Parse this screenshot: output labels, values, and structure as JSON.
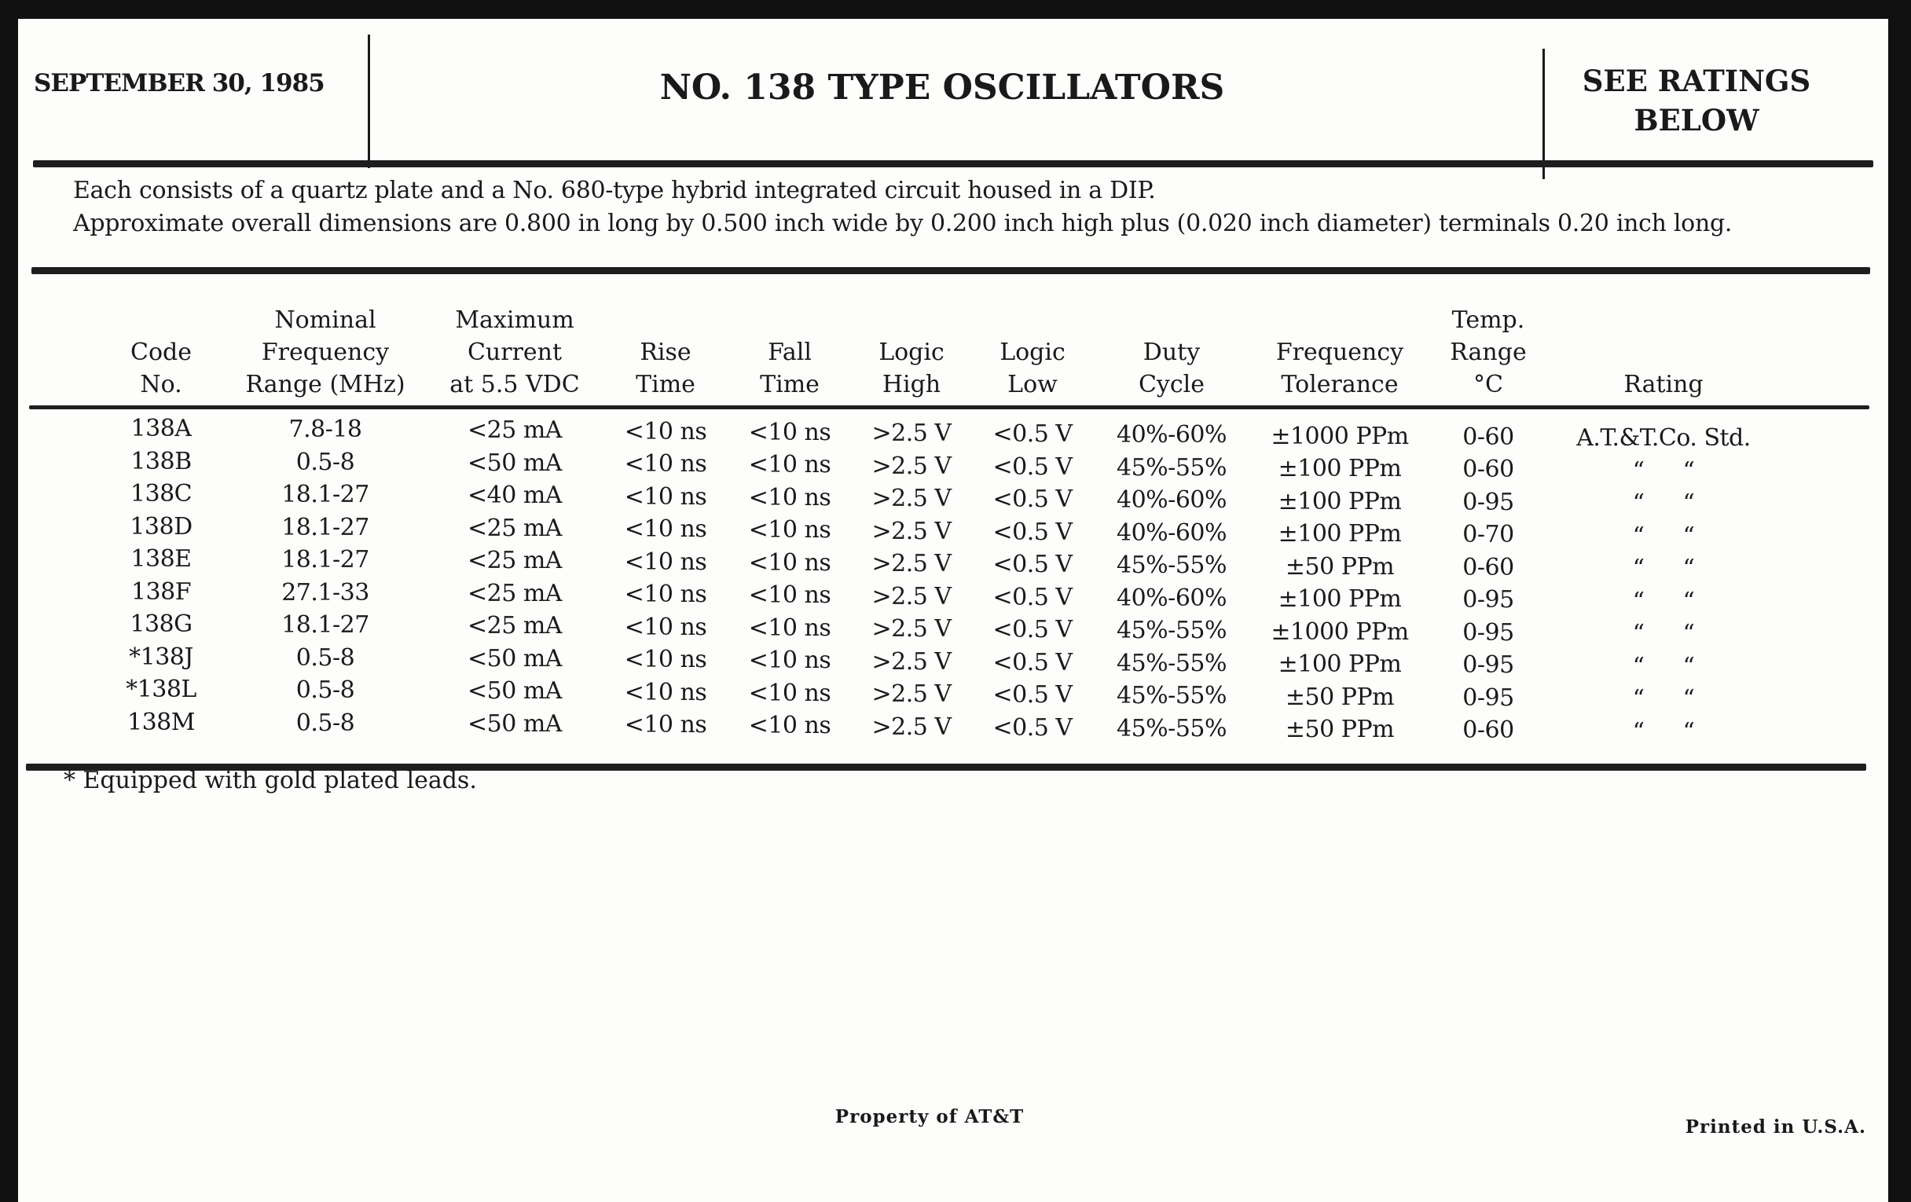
{
  "header": {
    "date": "SEPTEMBER 30, 1985",
    "title": "NO. 138 TYPE OSCILLATORS",
    "ratings_line1": "SEE RATINGS",
    "ratings_line2": "BELOW"
  },
  "intro": {
    "line1": "Each consists of a quartz plate and a No. 680-type hybrid integrated circuit housed in a DIP.",
    "line2": "Approximate overall dimensions are 0.800 in long by 0.500 inch wide by 0.200 inch high plus (0.020 inch diameter) terminals 0.20 inch long."
  },
  "table": {
    "columns": [
      [
        "Code",
        "No."
      ],
      [
        "Nominal",
        "Frequency",
        "Range (MHz)"
      ],
      [
        "Maximum",
        "Current",
        "at 5.5 VDC"
      ],
      [
        "Rise",
        "Time"
      ],
      [
        "Fall",
        "Time"
      ],
      [
        "Logic",
        "High"
      ],
      [
        "Logic",
        "Low"
      ],
      [
        "Duty",
        "Cycle"
      ],
      [
        "Frequency",
        "Tolerance"
      ],
      [
        "Temp.",
        "Range",
        "°C"
      ],
      [
        "Rating"
      ]
    ],
    "rows": [
      [
        "138A",
        "7.8-18",
        "<25 mA",
        "<10 ns",
        "<10 ns",
        ">2.5 V",
        "<0.5 V",
        "40%-60%",
        "±1000 PPm",
        "0-60",
        "A.T.&T.Co. Std."
      ],
      [
        "138B",
        "0.5-8",
        "<50 mA",
        "<10 ns",
        "<10 ns",
        ">2.5 V",
        "<0.5 V",
        "45%-55%",
        "±100 PPm",
        "0-60",
        "“ “"
      ],
      [
        "138C",
        "18.1-27",
        "<40 mA",
        "<10 ns",
        "<10 ns",
        ">2.5 V",
        "<0.5 V",
        "40%-60%",
        "±100 PPm",
        "0-95",
        "“ “"
      ],
      [
        "138D",
        "18.1-27",
        "<25 mA",
        "<10 ns",
        "<10 ns",
        ">2.5 V",
        "<0.5 V",
        "40%-60%",
        "±100 PPm",
        "0-70",
        "“ “"
      ],
      [
        "138E",
        "18.1-27",
        "<25 mA",
        "<10 ns",
        "<10 ns",
        ">2.5 V",
        "<0.5 V",
        "45%-55%",
        "±50 PPm",
        "0-60",
        "“ “"
      ],
      [
        "138F",
        "27.1-33",
        "<25 mA",
        "<10 ns",
        "<10 ns",
        ">2.5 V",
        "<0.5 V",
        "40%-60%",
        "±100 PPm",
        "0-95",
        "“ “"
      ],
      [
        "138G",
        "18.1-27",
        "<25 mA",
        "<10 ns",
        "<10 ns",
        ">2.5 V",
        "<0.5 V",
        "45%-55%",
        "±1000 PPm",
        "0-95",
        "“ “"
      ],
      [
        "*138J",
        "0.5-8",
        "<50 mA",
        "<10 ns",
        "<10 ns",
        ">2.5 V",
        "<0.5 V",
        "45%-55%",
        "±100 PPm",
        "0-95",
        "“ “"
      ],
      [
        "*138L",
        "0.5-8",
        "<50 mA",
        "<10 ns",
        "<10 ns",
        ">2.5 V",
        "<0.5 V",
        "45%-55%",
        "±50 PPm",
        "0-95",
        "“ “"
      ],
      [
        "138M",
        "0.5-8",
        "<50 mA",
        "<10 ns",
        "<10 ns",
        ">2.5 V",
        "<0.5 V",
        "45%-55%",
        "±50 PPm",
        "0-60",
        "“ “"
      ]
    ]
  },
  "footnote": "* Equipped with gold plated leads.",
  "footer": {
    "property": "Property of AT&T",
    "printed": "Printed in U.S.A."
  }
}
